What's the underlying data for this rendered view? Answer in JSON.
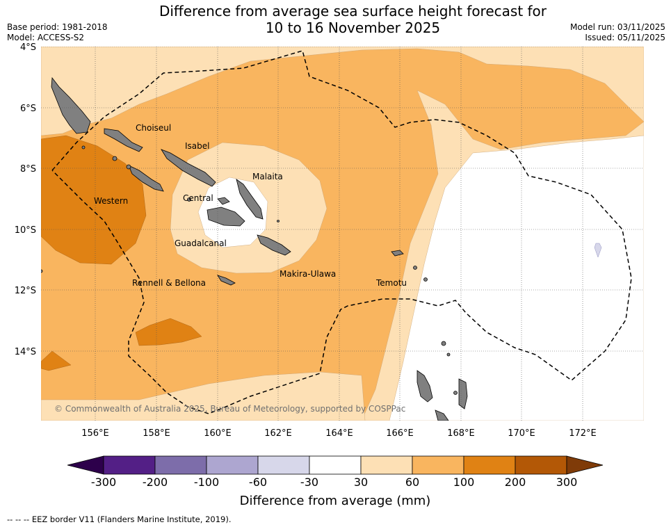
{
  "title": {
    "line1": "Difference from average sea surface height forecast for",
    "line2": "10 to 16 November 2025"
  },
  "meta": {
    "base_period": "Base period: 1981-2018",
    "model": "Model: ACCESS-S2",
    "model_run": "Model run: 03/11/2025",
    "issued": "Issued: 05/11/2025"
  },
  "axes": {
    "lat_labels": [
      "4°S",
      "6°S",
      "8°S",
      "10°S",
      "12°S",
      "14°S"
    ],
    "lon_labels": [
      "156°E",
      "158°E",
      "160°E",
      "162°E",
      "164°E",
      "166°E",
      "168°E",
      "170°E",
      "172°E"
    ]
  },
  "provinces": [
    "Choiseul",
    "Isabel",
    "Malaita",
    "Western",
    "Central",
    "Guadalcanal",
    "Rennell & Bellona",
    "Makira-Ulawa",
    "Temotu"
  ],
  "copyright": "© Commonwealth of Australia 2025, Bureau of Meteorology, supported by COSPPac",
  "colorbar": {
    "ticks": [
      "-300",
      "-200",
      "-100",
      "-60",
      "-30",
      "30",
      "60",
      "100",
      "200",
      "300"
    ],
    "colors": [
      "#531f86",
      "#7d6daa",
      "#ada6d0",
      "#d7d7ea",
      "#ffffff",
      "#fde0b5",
      "#f9b55f",
      "#e08214",
      "#b35806"
    ],
    "extend_low": "#2d004b",
    "extend_high": "#7f3b08",
    "label": "Difference from average (mm)"
  },
  "footer": "--  --  -- EEZ border V11 (Flanders Marine Institute, 2019)."
}
